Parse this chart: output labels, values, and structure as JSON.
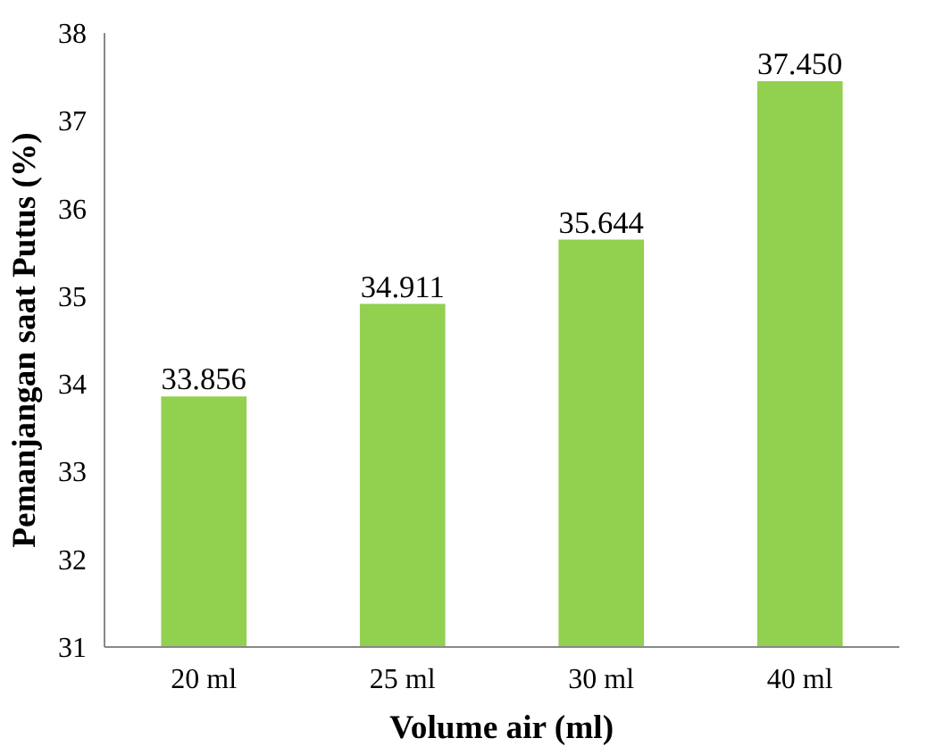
{
  "chart_data": {
    "type": "bar",
    "xlabel": "Volume air (ml)",
    "ylabel": "Pemanjangan saat Putus (%)",
    "categories": [
      "20 ml",
      "25 ml",
      "30 ml",
      "40 ml"
    ],
    "values": [
      33.856,
      34.911,
      35.644,
      37.45
    ],
    "value_labels": [
      "33.856",
      "34.911",
      "35.644",
      "37.450"
    ],
    "color": "#92d050",
    "ylim": [
      31,
      38
    ],
    "yticks": [
      31,
      32,
      33,
      34,
      35,
      36,
      37,
      38
    ],
    "grid": false
  }
}
